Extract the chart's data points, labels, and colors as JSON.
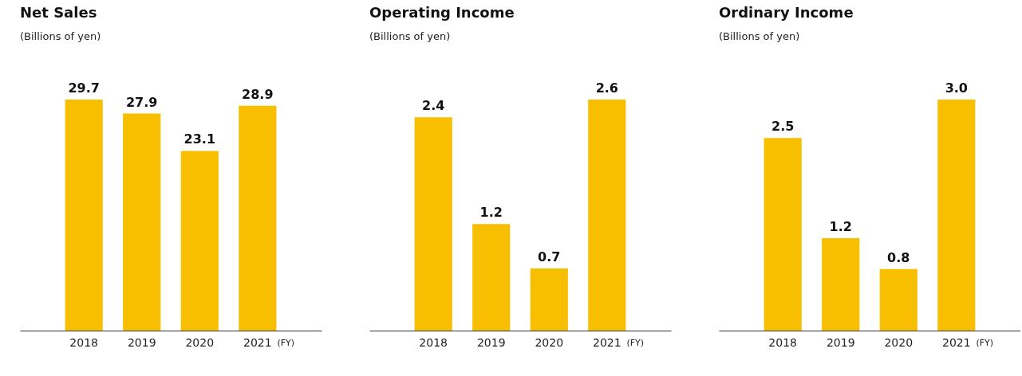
{
  "chart_data": [
    {
      "type": "bar",
      "title": "Net Sales",
      "subtitle": "(Billions of yen)",
      "xlabel": "(FY)",
      "categories": [
        "2018",
        "2019",
        "2020",
        "2021"
      ],
      "values": [
        29.7,
        27.9,
        23.1,
        28.9
      ],
      "value_labels": [
        "29.7",
        "27.9",
        "23.1",
        "28.9"
      ],
      "color": "#f8be00",
      "tick_labels": "x"
    },
    {
      "type": "bar",
      "title": "Operating Income",
      "subtitle": "(Billions of yen)",
      "xlabel": "(FY)",
      "categories": [
        "2018",
        "2019",
        "2020",
        "2021"
      ],
      "values": [
        2.4,
        1.2,
        0.7,
        2.6
      ],
      "value_labels": [
        "2.4",
        "1.2",
        "0.7",
        "2.6"
      ],
      "color": "#f8be00",
      "tick_labels": "x"
    },
    {
      "type": "bar",
      "title": "Ordinary Income",
      "subtitle": "(Billions of yen)",
      "xlabel": "(FY)",
      "categories": [
        "2018",
        "2019",
        "2020",
        "2021"
      ],
      "values": [
        2.5,
        1.2,
        0.8,
        3.0
      ],
      "value_labels": [
        "2.5",
        "1.2",
        "0.8",
        "3.0"
      ],
      "color": "#f8be00",
      "tick_labels": "x"
    }
  ]
}
